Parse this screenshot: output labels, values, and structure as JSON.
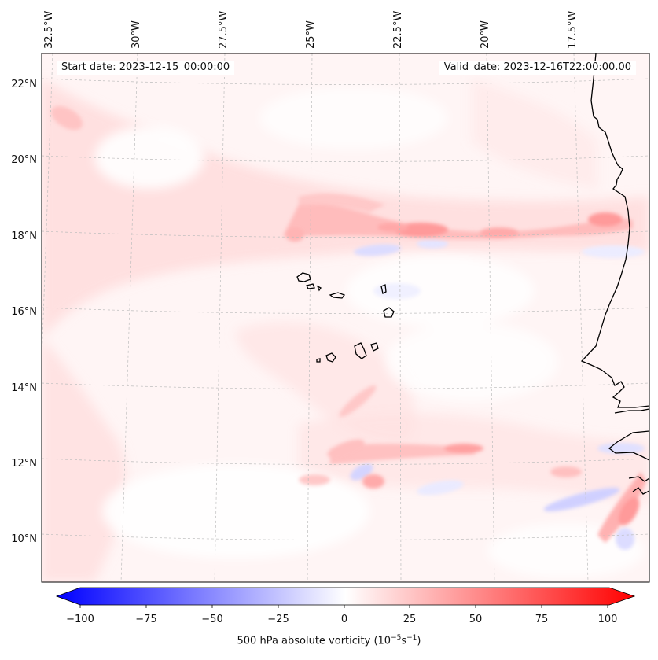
{
  "annotations": {
    "start_date": "Start date: 2023-12-15_00:00:00",
    "valid_date": "Valid_date: 2023-12-16T22:00:00.00"
  },
  "map": {
    "projection": "conic",
    "lon_labels": [
      "32.5°W",
      "30°W",
      "27.5°W",
      "25°W",
      "22.5°W",
      "20°W",
      "17.5°W"
    ],
    "lat_labels": [
      "22°N",
      "20°N",
      "18°N",
      "16°N",
      "14°N",
      "12°N",
      "10°N"
    ],
    "gridlines": "dashed light grey",
    "field": "500 hPa absolute vorticity",
    "features": [
      "West African coastline",
      "Cape Verde islands",
      "Gambia / Guinea-Bissau coast"
    ]
  },
  "colorbar": {
    "label_text": "500 hPa absolute vorticity (10",
    "label_exp1": "−5",
    "label_mid": "s",
    "label_exp2": "−1",
    "label_close": ")",
    "ticks": [
      "−100",
      "−75",
      "−50",
      "−25",
      "0",
      "25",
      "50",
      "75",
      "100"
    ],
    "range": [
      -100,
      100
    ],
    "cmap": "bwr",
    "extend": "both",
    "colors": {
      "neg": "#0000ff",
      "zero": "#ffffff",
      "pos": "#ff0000"
    }
  }
}
